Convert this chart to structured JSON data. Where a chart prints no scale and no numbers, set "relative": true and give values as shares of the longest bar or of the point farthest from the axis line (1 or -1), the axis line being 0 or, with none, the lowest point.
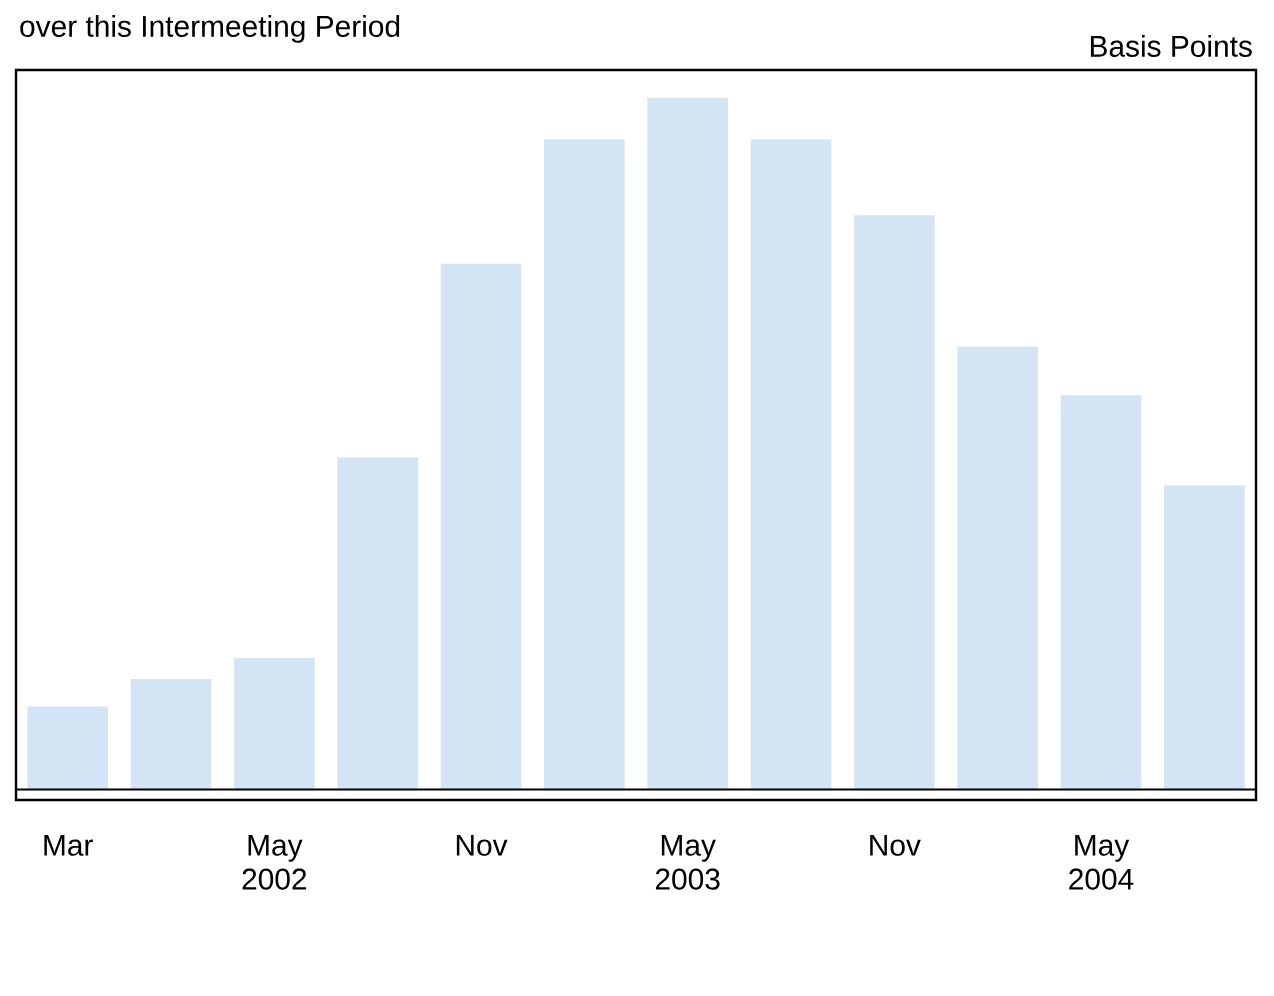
{
  "chart_data": {
    "type": "bar",
    "title": "over this Intermeeting Period",
    "ylabel": "Basis Points",
    "relative": true,
    "color": "#d3e5f5",
    "categories": [
      "Mar",
      null,
      "May 2002",
      null,
      "Nov",
      null,
      "May 2003",
      null,
      "Nov",
      null,
      "May 2004",
      null
    ],
    "values": [
      0.12,
      0.16,
      0.19,
      0.48,
      0.76,
      0.94,
      1,
      0.94,
      0.83,
      0.64,
      0.57,
      0.44
    ]
  }
}
